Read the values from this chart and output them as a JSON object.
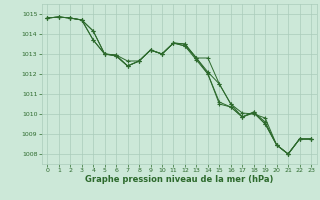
{
  "title": "Graphe pression niveau de la mer (hPa)",
  "bg_color": "#cce8d8",
  "grid_color": "#aaccbb",
  "line_color": "#2d6a2d",
  "marker_color": "#2d6a2d",
  "xlim": [
    -0.5,
    23.5
  ],
  "ylim": [
    1007.5,
    1015.5
  ],
  "yticks": [
    1008,
    1009,
    1010,
    1011,
    1012,
    1013,
    1014,
    1015
  ],
  "xticks": [
    0,
    1,
    2,
    3,
    4,
    5,
    6,
    7,
    8,
    9,
    10,
    11,
    12,
    13,
    14,
    15,
    16,
    17,
    18,
    19,
    20,
    21,
    22,
    23
  ],
  "series": [
    [
      1014.8,
      1014.85,
      1014.8,
      1014.7,
      1014.15,
      1013.0,
      1012.95,
      1012.4,
      1012.65,
      1013.2,
      1013.0,
      1013.55,
      1013.5,
      1012.8,
      1012.8,
      1011.5,
      1010.5,
      1010.05,
      1010.0,
      1009.8,
      1008.45,
      1008.0,
      1008.75,
      1008.75
    ],
    [
      1014.8,
      1014.85,
      1014.8,
      1014.7,
      1014.15,
      1013.0,
      1012.95,
      1012.65,
      1012.65,
      1013.2,
      1013.0,
      1013.55,
      1013.5,
      1012.8,
      1012.1,
      1011.5,
      1010.5,
      1009.85,
      1010.1,
      1009.6,
      1008.45,
      1008.0,
      1008.75,
      1008.75
    ],
    [
      1014.8,
      1014.85,
      1014.8,
      1014.7,
      1013.7,
      1013.0,
      1012.9,
      1012.4,
      1012.65,
      1013.2,
      1013.0,
      1013.55,
      1013.4,
      1012.8,
      1012.0,
      1010.6,
      1010.35,
      1009.85,
      1010.1,
      1009.5,
      1008.45,
      1008.0,
      1008.75,
      1008.75
    ],
    [
      1014.8,
      1014.85,
      1014.8,
      1014.7,
      1013.7,
      1013.0,
      1012.9,
      1012.4,
      1012.65,
      1013.2,
      1013.0,
      1013.55,
      1013.4,
      1012.7,
      1012.0,
      1010.5,
      1010.35,
      1009.85,
      1010.05,
      1009.5,
      1008.45,
      1008.0,
      1008.75,
      1008.75
    ]
  ],
  "figsize": [
    3.2,
    2.0
  ],
  "dpi": 100
}
